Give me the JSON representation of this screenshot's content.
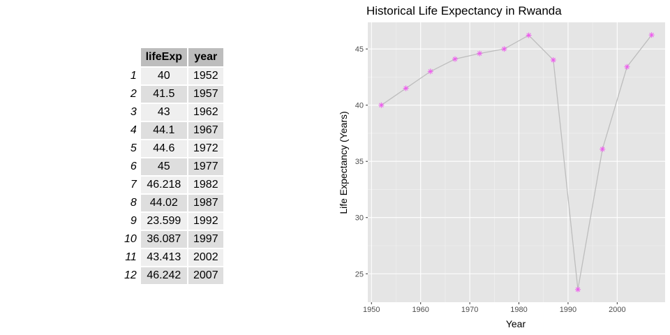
{
  "table": {
    "columns": [
      "lifeExp",
      "year"
    ],
    "rows": [
      {
        "index": "1",
        "lifeExp": "40",
        "year": "1952"
      },
      {
        "index": "2",
        "lifeExp": "41.5",
        "year": "1957"
      },
      {
        "index": "3",
        "lifeExp": "43",
        "year": "1962"
      },
      {
        "index": "4",
        "lifeExp": "44.1",
        "year": "1967"
      },
      {
        "index": "5",
        "lifeExp": "44.6",
        "year": "1972"
      },
      {
        "index": "6",
        "lifeExp": "45",
        "year": "1977"
      },
      {
        "index": "7",
        "lifeExp": "46.218",
        "year": "1982"
      },
      {
        "index": "8",
        "lifeExp": "44.02",
        "year": "1987"
      },
      {
        "index": "9",
        "lifeExp": "23.599",
        "year": "1992"
      },
      {
        "index": "10",
        "lifeExp": "36.087",
        "year": "1997"
      },
      {
        "index": "11",
        "lifeExp": "43.413",
        "year": "2002"
      },
      {
        "index": "12",
        "lifeExp": "46.242",
        "year": "2007"
      }
    ]
  },
  "chart_data": {
    "type": "line",
    "title": "Historical Life Expectancy in Rwanda",
    "xlabel": "Year",
    "ylabel": "Life Expectancy (Years)",
    "x": [
      1952,
      1957,
      1962,
      1967,
      1972,
      1977,
      1982,
      1987,
      1992,
      1997,
      2002,
      2007
    ],
    "y": [
      40,
      41.5,
      43,
      44.1,
      44.6,
      45,
      46.218,
      44.02,
      23.599,
      36.087,
      43.413,
      46.242
    ],
    "xlim": [
      1949.25,
      2009.75
    ],
    "ylim": [
      22.47,
      47.37
    ],
    "xticks": [
      1950,
      1960,
      1970,
      1980,
      1990,
      2000
    ],
    "yticks": [
      25,
      30,
      35,
      40,
      45
    ],
    "grid": true,
    "marker": "asterisk",
    "colors": {
      "panel_background": "#e5e5e5",
      "grid_major": "#ffffff",
      "grid_minor": "#f2f2f2",
      "line": "#bdbdbd",
      "marker": "#ee5cee"
    }
  }
}
